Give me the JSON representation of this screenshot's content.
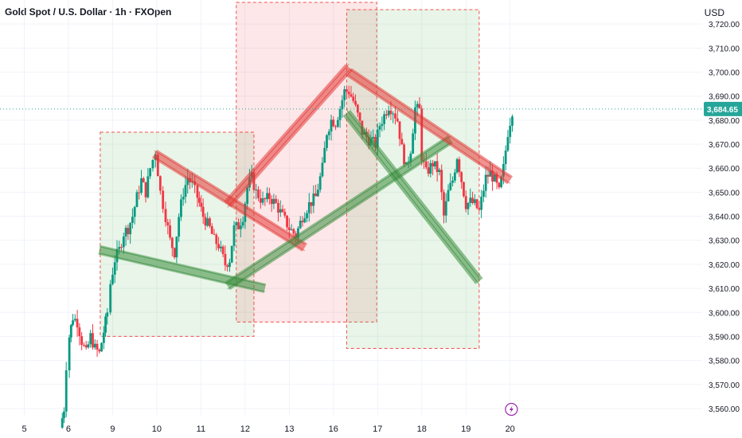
{
  "chart_data": {
    "type": "candlestick",
    "title": "Gold Spot / U.S. Dollar · 1h · FXOpen",
    "currency": "USD",
    "last_price": "3,684.65",
    "ylim": [
      3557,
      3730
    ],
    "yticks": [
      3560,
      3570,
      3580,
      3590,
      3600,
      3610,
      3620,
      3630,
      3640,
      3650,
      3660,
      3670,
      3680,
      3690,
      3700,
      3710,
      3720
    ],
    "ytick_labels": [
      "3,560.00",
      "3,570.00",
      "3,580.00",
      "3,590.00",
      "3,600.00",
      "3,610.00",
      "3,620.00",
      "3,630.00",
      "3,640.00",
      "3,650.00",
      "3,660.00",
      "3,670.00",
      "3,680.00",
      "3,690.00",
      "3,700.00",
      "3,710.00",
      "3,720.00"
    ],
    "xlim": [
      4.45,
      20.35
    ],
    "xticks": [
      5,
      6,
      9,
      10,
      11,
      12,
      13,
      16,
      17,
      18,
      19,
      20
    ],
    "xtick_labels": [
      "5",
      "6",
      "9",
      "10",
      "11",
      "12",
      "13",
      "16",
      "17",
      "18",
      "19",
      "20"
    ],
    "xtick_pos": [
      5,
      6,
      7,
      8,
      9,
      10,
      11,
      12,
      13,
      14,
      15,
      16
    ],
    "candle_path": [
      [
        5.82,
        3552
      ],
      [
        5.9,
        3560
      ],
      [
        5.95,
        3578
      ],
      [
        6.02,
        3590
      ],
      [
        6.1,
        3598
      ],
      [
        6.2,
        3596
      ],
      [
        6.3,
        3588
      ],
      [
        6.4,
        3583
      ],
      [
        6.5,
        3590
      ],
      [
        6.6,
        3585
      ],
      [
        6.7,
        3583
      ],
      [
        6.8,
        3592
      ],
      [
        6.88,
        3600
      ],
      [
        6.95,
        3612
      ],
      [
        7.05,
        3622
      ],
      [
        7.15,
        3626
      ],
      [
        7.25,
        3633
      ],
      [
        7.35,
        3635
      ],
      [
        7.45,
        3640
      ],
      [
        7.55,
        3648
      ],
      [
        7.65,
        3655
      ],
      [
        7.75,
        3650
      ],
      [
        7.85,
        3660
      ],
      [
        7.97,
        3667
      ],
      [
        8.08,
        3650
      ],
      [
        8.2,
        3640
      ],
      [
        8.3,
        3630
      ],
      [
        8.4,
        3625
      ],
      [
        8.5,
        3640
      ],
      [
        8.6,
        3650
      ],
      [
        8.7,
        3656
      ],
      [
        8.8,
        3653
      ],
      [
        8.92,
        3648
      ],
      [
        9.05,
        3640
      ],
      [
        9.2,
        3635
      ],
      [
        9.3,
        3630
      ],
      [
        9.4,
        3628
      ],
      [
        9.55,
        3620
      ],
      [
        9.65,
        3622
      ],
      [
        9.75,
        3635
      ],
      [
        9.85,
        3636
      ],
      [
        9.95,
        3640
      ],
      [
        10.05,
        3652
      ],
      [
        10.15,
        3656
      ],
      [
        10.25,
        3650
      ],
      [
        10.4,
        3646
      ],
      [
        10.55,
        3648
      ],
      [
        10.7,
        3645
      ],
      [
        10.85,
        3640
      ],
      [
        11.0,
        3635
      ],
      [
        11.15,
        3632
      ],
      [
        11.3,
        3640
      ],
      [
        11.45,
        3645
      ],
      [
        11.6,
        3648
      ],
      [
        11.75,
        3660
      ],
      [
        11.85,
        3675
      ],
      [
        11.95,
        3680
      ],
      [
        12.05,
        3679
      ],
      [
        12.15,
        3685
      ],
      [
        12.25,
        3692
      ],
      [
        12.35,
        3692
      ],
      [
        12.45,
        3688
      ],
      [
        12.55,
        3682
      ],
      [
        12.65,
        3675
      ],
      [
        12.8,
        3672
      ],
      [
        12.95,
        3670
      ],
      [
        13.05,
        3678
      ],
      [
        13.15,
        3682
      ],
      [
        13.25,
        3686
      ],
      [
        13.35,
        3684
      ],
      [
        13.45,
        3680
      ],
      [
        13.55,
        3668
      ],
      [
        13.65,
        3660
      ],
      [
        13.75,
        3668
      ],
      [
        13.85,
        3685
      ],
      [
        13.95,
        3684
      ],
      [
        14.0,
        3665
      ],
      [
        14.1,
        3658
      ],
      [
        14.25,
        3662
      ],
      [
        14.4,
        3658
      ],
      [
        14.5,
        3640
      ],
      [
        14.6,
        3650
      ],
      [
        14.7,
        3655
      ],
      [
        14.8,
        3665
      ],
      [
        14.9,
        3655
      ],
      [
        15.0,
        3645
      ],
      [
        15.1,
        3646
      ],
      [
        15.2,
        3645
      ],
      [
        15.3,
        3642
      ],
      [
        15.45,
        3656
      ],
      [
        15.55,
        3658
      ],
      [
        15.65,
        3655
      ],
      [
        15.75,
        3650
      ],
      [
        15.85,
        3660
      ],
      [
        15.95,
        3675
      ],
      [
        16.05,
        3684
      ]
    ],
    "series": [
      {
        "name": "trendline",
        "color": "#e53935",
        "line": [
          [
            7.95,
            3666
          ],
          [
            11.35,
            3627
          ]
        ]
      },
      {
        "name": "trendline",
        "color": "#43a047",
        "line": [
          [
            6.7,
            3626
          ],
          [
            10.45,
            3610
          ]
        ]
      },
      {
        "name": "trendline",
        "color": "#e53935",
        "line": [
          [
            9.6,
            3645
          ],
          [
            12.35,
            3702
          ]
        ]
      },
      {
        "name": "trendline",
        "color": "#43a047",
        "line": [
          [
            9.6,
            3611
          ],
          [
            14.65,
            3672
          ]
        ]
      },
      {
        "name": "trendline",
        "color": "#e53935",
        "line": [
          [
            12.35,
            3700
          ],
          [
            16.0,
            3655
          ]
        ]
      },
      {
        "name": "trendline",
        "color": "#43a047",
        "line": [
          [
            12.3,
            3683
          ],
          [
            15.3,
            3613
          ]
        ]
      }
    ],
    "zones": [
      {
        "color": "green",
        "x": [
          6.72,
          10.2
        ],
        "y": [
          3590,
          3675
        ]
      },
      {
        "color": "red",
        "x": [
          9.8,
          12.98
        ],
        "y": [
          3596,
          3729
        ]
      },
      {
        "color": "green",
        "x": [
          12.3,
          15.3
        ],
        "y": [
          3585,
          3726
        ]
      }
    ]
  },
  "labels": {
    "title": "Gold Spot / U.S. Dollar · 1h · FXOpen",
    "currency": "USD",
    "last_price": "3,684.65"
  },
  "colors": {
    "up": "#089981",
    "down": "#f23645",
    "accent": "#26a69a",
    "lightning": "#9c27b0"
  },
  "icons": {
    "event": "lightning-icon"
  }
}
